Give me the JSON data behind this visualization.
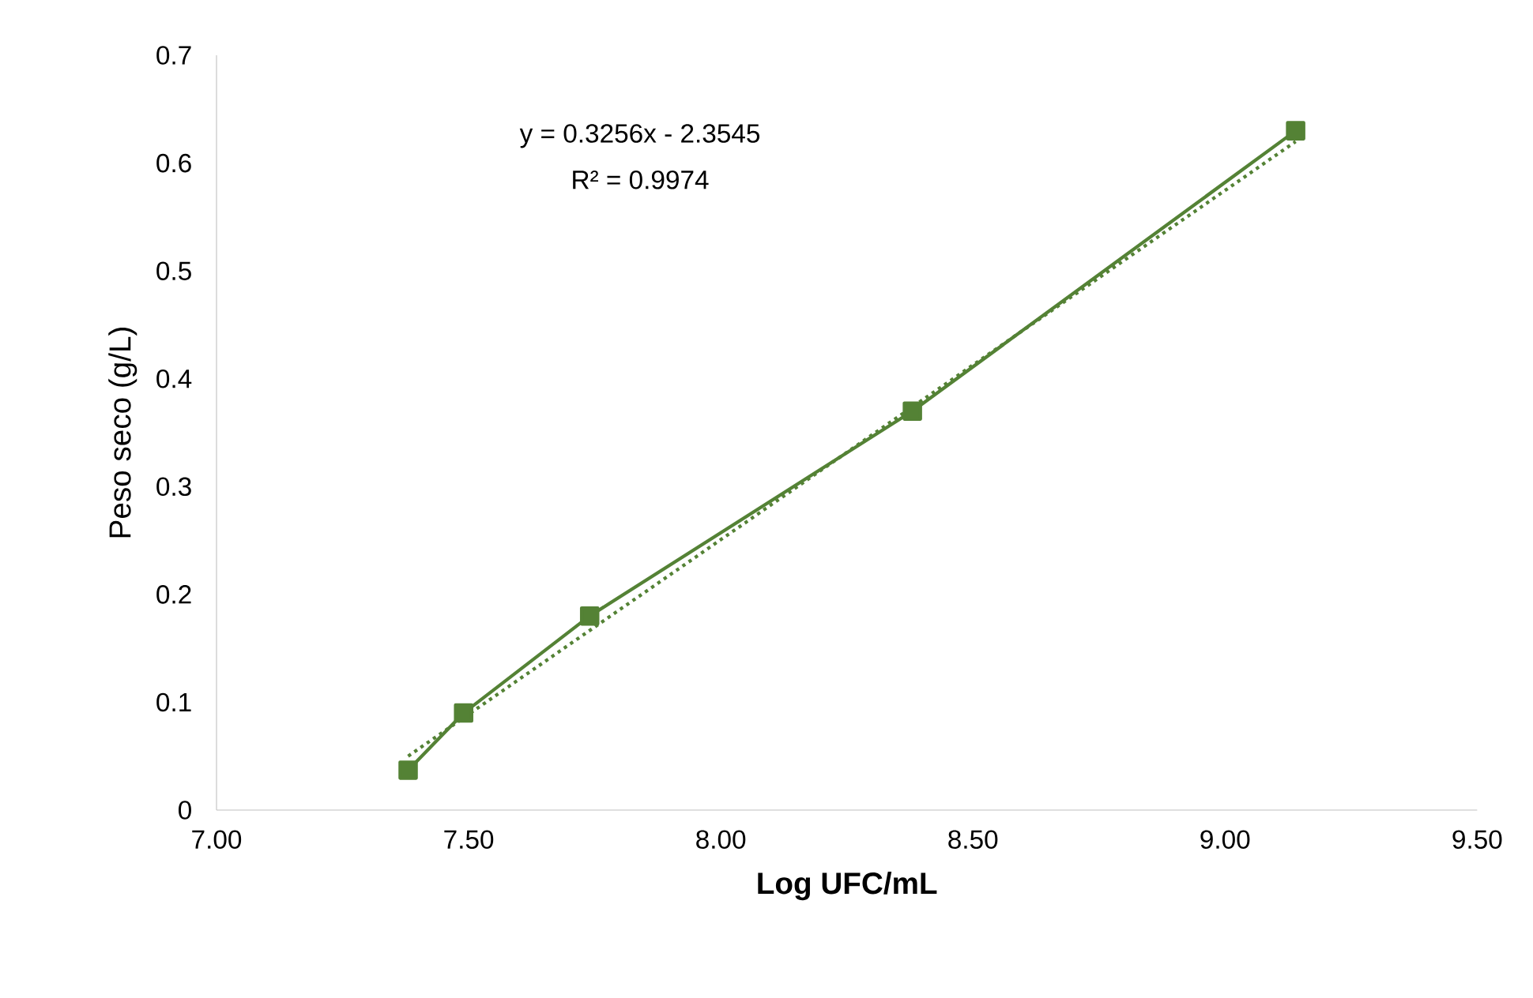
{
  "chart_data": {
    "type": "line",
    "xlabel": "Log UFC/mL",
    "ylabel": "Peso seco (g/L)",
    "xlim": [
      7,
      9.5
    ],
    "xticks": [
      {
        "value": 7,
        "label": "7.00"
      },
      {
        "value": 7.5,
        "label": "7.50"
      },
      {
        "value": 8,
        "label": "8.00"
      },
      {
        "value": 8.5,
        "label": "8.50"
      },
      {
        "value": 9,
        "label": "9.00"
      },
      {
        "value": 9.5,
        "label": "9.50"
      }
    ],
    "ylim": [
      0,
      0.7
    ],
    "yticks": [
      0,
      0.1,
      0.2,
      0.3,
      0.4,
      0.5,
      0.6,
      0.7
    ],
    "grid": false,
    "annotations": [
      "y = 0.3256x - 2.3545",
      "R² = 0.9974"
    ],
    "series": [
      {
        "color": "#548235",
        "x": [
          7.38,
          7.49,
          7.74,
          8.38,
          9.14
        ],
        "values": [
          0.037,
          0.09,
          0.18,
          0.37,
          0.63
        ],
        "marker": "square",
        "line_style": "solid"
      },
      {
        "type": "line",
        "color": "#548235",
        "x": [
          7.38,
          9.14
        ],
        "values": [
          0.05,
          0.62
        ],
        "marker": "none",
        "line_style": "dotted"
      }
    ]
  }
}
